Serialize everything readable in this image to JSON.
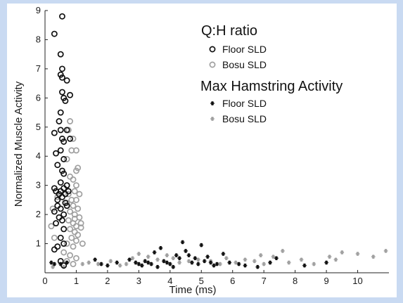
{
  "chart_data": {
    "type": "scatter",
    "xlabel": "Time (ms)",
    "ylabel": "Normalized Muscle Activity",
    "xlim": [
      0,
      11
    ],
    "ylim": [
      0,
      9
    ],
    "xticks": [
      0,
      1,
      2,
      3,
      4,
      5,
      6,
      7,
      8,
      9,
      10
    ],
    "yticks": [
      1,
      2,
      3,
      4,
      5,
      6,
      7,
      8,
      9
    ],
    "grid": false,
    "legend_position": "top-right",
    "colors": {
      "dark": "#111111",
      "gray": "#a0a0a0"
    },
    "legend": {
      "groups": [
        {
          "title": "Q:H ratio",
          "entries": [
            {
              "label": "Floor SLD",
              "marker": "circle",
              "color": "#111111"
            },
            {
              "label": "Bosu SLD",
              "marker": "circle",
              "color": "#a0a0a0"
            }
          ]
        },
        {
          "title": "Max Hamstring Activity",
          "entries": [
            {
              "label": "Floor SLD",
              "marker": "star",
              "color": "#111111"
            },
            {
              "label": "Bosu SLD",
              "marker": "star",
              "color": "#a0a0a0"
            }
          ]
        }
      ]
    },
    "series": [
      {
        "marker": "circle",
        "color": "#111111",
        "points": [
          [
            0.55,
            8.8
          ],
          [
            0.3,
            8.2
          ],
          [
            0.5,
            7.5
          ],
          [
            0.55,
            7.0
          ],
          [
            0.5,
            6.8
          ],
          [
            0.55,
            6.7
          ],
          [
            0.7,
            6.6
          ],
          [
            0.55,
            6.2
          ],
          [
            0.6,
            6.0
          ],
          [
            0.8,
            6.1
          ],
          [
            0.65,
            5.9
          ],
          [
            0.5,
            5.5
          ],
          [
            0.45,
            5.2
          ],
          [
            0.5,
            4.9
          ],
          [
            0.55,
            4.6
          ],
          [
            0.3,
            4.8
          ],
          [
            0.7,
            4.9
          ],
          [
            0.6,
            4.5
          ],
          [
            0.8,
            4.6
          ],
          [
            0.35,
            4.1
          ],
          [
            0.5,
            4.2
          ],
          [
            0.6,
            3.9
          ],
          [
            0.4,
            3.7
          ],
          [
            0.55,
            3.5
          ],
          [
            0.6,
            3.4
          ],
          [
            0.3,
            2.9
          ],
          [
            0.35,
            2.8
          ],
          [
            0.45,
            2.7
          ],
          [
            0.5,
            2.8
          ],
          [
            0.6,
            2.9
          ],
          [
            0.7,
            3.0
          ],
          [
            0.55,
            2.6
          ],
          [
            0.65,
            2.4
          ],
          [
            0.4,
            2.3
          ],
          [
            0.5,
            2.2
          ],
          [
            0.6,
            2.0
          ],
          [
            0.7,
            2.3
          ],
          [
            0.3,
            2.1
          ],
          [
            0.45,
            1.9
          ],
          [
            0.55,
            1.8
          ],
          [
            0.35,
            1.7
          ],
          [
            0.6,
            1.5
          ],
          [
            0.5,
            1.2
          ],
          [
            0.6,
            1.0
          ],
          [
            0.4,
            0.9
          ],
          [
            0.3,
            0.8
          ],
          [
            0.5,
            0.4
          ],
          [
            0.6,
            0.25
          ],
          [
            0.4,
            2.5
          ],
          [
            0.65,
            2.7
          ],
          [
            0.75,
            2.8
          ],
          [
            0.5,
            3.1
          ]
        ]
      },
      {
        "marker": "circle",
        "color": "#a0a0a0",
        "points": [
          [
            0.8,
            5.2
          ],
          [
            0.75,
            4.9
          ],
          [
            0.9,
            4.6
          ],
          [
            1.0,
            4.2
          ],
          [
            0.85,
            4.2
          ],
          [
            0.7,
            3.9
          ],
          [
            1.05,
            3.6
          ],
          [
            1.0,
            3.5
          ],
          [
            0.8,
            3.3
          ],
          [
            0.9,
            3.2
          ],
          [
            0.7,
            3.0
          ],
          [
            1.0,
            3.0
          ],
          [
            0.95,
            2.8
          ],
          [
            0.75,
            2.7
          ],
          [
            1.1,
            2.7
          ],
          [
            0.85,
            2.5
          ],
          [
            1.0,
            2.5
          ],
          [
            0.7,
            2.4
          ],
          [
            0.9,
            2.3
          ],
          [
            1.05,
            2.2
          ],
          [
            0.8,
            2.1
          ],
          [
            0.95,
            2.0
          ],
          [
            1.1,
            1.9
          ],
          [
            0.75,
            1.8
          ],
          [
            0.9,
            1.7
          ],
          [
            1.0,
            1.6
          ],
          [
            1.15,
            1.55
          ],
          [
            0.8,
            1.5
          ],
          [
            0.95,
            1.4
          ],
          [
            1.05,
            1.3
          ],
          [
            0.85,
            1.2
          ],
          [
            1.0,
            1.1
          ],
          [
            0.7,
            1.0
          ],
          [
            1.2,
            1.0
          ],
          [
            0.9,
            0.9
          ],
          [
            0.6,
            0.7
          ],
          [
            0.8,
            0.6
          ],
          [
            1.0,
            0.5
          ],
          [
            0.7,
            0.4
          ],
          [
            0.9,
            0.3
          ],
          [
            0.2,
            1.6
          ],
          [
            0.3,
            1.2
          ],
          [
            0.25,
            2.2
          ],
          [
            0.4,
            2.6
          ],
          [
            1.15,
            1.7
          ],
          [
            0.95,
            1.85
          ]
        ]
      },
      {
        "marker": "star",
        "color": "#111111",
        "points": [
          [
            0.2,
            0.35
          ],
          [
            0.3,
            0.3
          ],
          [
            0.5,
            0.3
          ],
          [
            0.7,
            0.35
          ],
          [
            1.6,
            0.45
          ],
          [
            1.8,
            0.3
          ],
          [
            2.0,
            0.25
          ],
          [
            2.3,
            0.35
          ],
          [
            2.7,
            0.45
          ],
          [
            2.9,
            0.35
          ],
          [
            3.0,
            0.3
          ],
          [
            3.1,
            0.25
          ],
          [
            3.2,
            0.4
          ],
          [
            3.3,
            0.35
          ],
          [
            3.4,
            0.3
          ],
          [
            3.5,
            0.7
          ],
          [
            3.7,
            0.85
          ],
          [
            3.8,
            0.4
          ],
          [
            3.9,
            0.35
          ],
          [
            4.0,
            0.3
          ],
          [
            4.2,
            0.6
          ],
          [
            4.3,
            0.5
          ],
          [
            4.4,
            1.05
          ],
          [
            4.5,
            0.75
          ],
          [
            4.6,
            0.6
          ],
          [
            4.7,
            0.35
          ],
          [
            4.8,
            0.5
          ],
          [
            4.9,
            0.3
          ],
          [
            5.0,
            0.95
          ],
          [
            5.1,
            0.4
          ],
          [
            5.2,
            0.55
          ],
          [
            5.3,
            0.35
          ],
          [
            5.5,
            0.3
          ],
          [
            5.7,
            0.65
          ],
          [
            5.9,
            0.35
          ],
          [
            6.2,
            0.3
          ],
          [
            6.4,
            0.25
          ],
          [
            6.8,
            0.2
          ],
          [
            7.2,
            0.35
          ],
          [
            7.4,
            0.5
          ],
          [
            8.3,
            0.25
          ],
          [
            9.0,
            0.35
          ],
          [
            4.1,
            0.2
          ],
          [
            3.6,
            0.2
          ],
          [
            5.4,
            0.25
          ]
        ]
      },
      {
        "marker": "star",
        "color": "#a0a0a0",
        "points": [
          [
            0.25,
            0.2
          ],
          [
            0.6,
            0.2
          ],
          [
            1.2,
            0.3
          ],
          [
            1.4,
            0.35
          ],
          [
            1.7,
            0.3
          ],
          [
            2.1,
            0.4
          ],
          [
            2.4,
            0.25
          ],
          [
            2.6,
            0.3
          ],
          [
            2.8,
            0.5
          ],
          [
            3.0,
            0.65
          ],
          [
            3.3,
            0.55
          ],
          [
            3.6,
            0.45
          ],
          [
            3.9,
            0.6
          ],
          [
            4.1,
            0.5
          ],
          [
            4.3,
            0.35
          ],
          [
            4.6,
            0.4
          ],
          [
            4.9,
            0.45
          ],
          [
            5.3,
            0.4
          ],
          [
            5.6,
            0.3
          ],
          [
            5.8,
            0.5
          ],
          [
            6.1,
            0.35
          ],
          [
            6.4,
            0.45
          ],
          [
            6.7,
            0.4
          ],
          [
            7.0,
            0.3
          ],
          [
            7.3,
            0.55
          ],
          [
            7.6,
            0.75
          ],
          [
            7.8,
            0.35
          ],
          [
            8.2,
            0.45
          ],
          [
            8.6,
            0.3
          ],
          [
            9.1,
            0.55
          ],
          [
            9.3,
            0.45
          ],
          [
            9.5,
            0.7
          ],
          [
            10.0,
            0.65
          ],
          [
            10.5,
            0.55
          ],
          [
            10.9,
            0.75
          ],
          [
            6.9,
            0.6
          ]
        ]
      }
    ]
  }
}
